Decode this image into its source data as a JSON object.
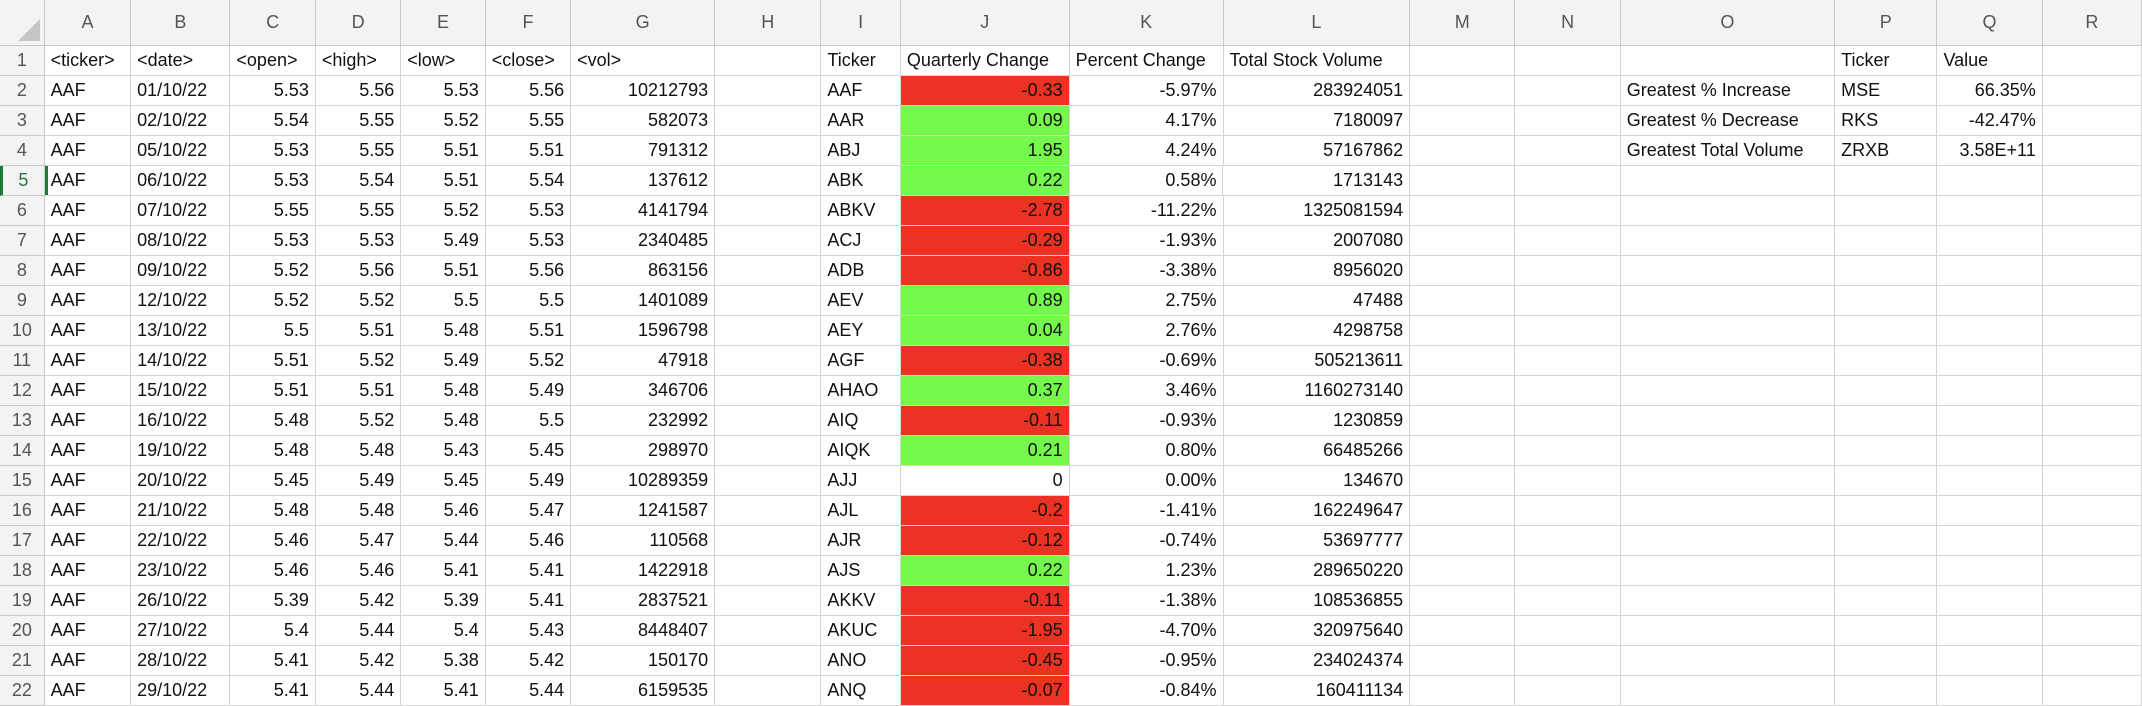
{
  "columns": [
    "A",
    "B",
    "C",
    "D",
    "E",
    "F",
    "G",
    "H",
    "I",
    "J",
    "K",
    "L",
    "M",
    "N",
    "O",
    "P",
    "Q",
    "R"
  ],
  "colors": {
    "positive": "#75f94c",
    "negative": "#eb3223",
    "header_bg": "#f3f3f3",
    "grid": "#d4d4d4"
  },
  "active_row": 5,
  "rows": [
    {
      "n": "1",
      "cells": [
        "<ticker>",
        "<date>",
        "<open>",
        "<high>",
        "<low>",
        "<close>",
        "<vol>",
        "",
        "Ticker",
        "Quarterly Change",
        "Percent Change",
        "Total Stock Volume",
        "",
        "",
        "",
        "Ticker",
        "Value",
        ""
      ]
    },
    {
      "n": "2",
      "cells": [
        "AAF",
        "01/10/22",
        "5.53",
        "5.56",
        "5.53",
        "5.56",
        "10212793",
        "",
        "AAF",
        "-0.33",
        "-5.97%",
        "283924051",
        "",
        "",
        "Greatest % Increase",
        "MSE",
        "66.35%",
        ""
      ]
    },
    {
      "n": "3",
      "cells": [
        "AAF",
        "02/10/22",
        "5.54",
        "5.55",
        "5.52",
        "5.55",
        "582073",
        "",
        "AAR",
        "0.09",
        "4.17%",
        "7180097",
        "",
        "",
        "Greatest % Decrease",
        "RKS",
        "-42.47%",
        ""
      ]
    },
    {
      "n": "4",
      "cells": [
        "AAF",
        "05/10/22",
        "5.53",
        "5.55",
        "5.51",
        "5.51",
        "791312",
        "",
        "ABJ",
        "1.95",
        "4.24%",
        "57167862",
        "",
        "",
        "Greatest Total Volume",
        "ZRXB",
        "3.58E+11",
        ""
      ]
    },
    {
      "n": "5",
      "cells": [
        "AAF",
        "06/10/22",
        "5.53",
        "5.54",
        "5.51",
        "5.54",
        "137612",
        "",
        "ABK",
        "0.22",
        "0.58%",
        "1713143",
        "",
        "",
        "",
        "",
        "",
        ""
      ]
    },
    {
      "n": "6",
      "cells": [
        "AAF",
        "07/10/22",
        "5.55",
        "5.55",
        "5.52",
        "5.53",
        "4141794",
        "",
        "ABKV",
        "-2.78",
        "-11.22%",
        "1325081594",
        "",
        "",
        "",
        "",
        "",
        ""
      ]
    },
    {
      "n": "7",
      "cells": [
        "AAF",
        "08/10/22",
        "5.53",
        "5.53",
        "5.49",
        "5.53",
        "2340485",
        "",
        "ACJ",
        "-0.29",
        "-1.93%",
        "2007080",
        "",
        "",
        "",
        "",
        "",
        ""
      ]
    },
    {
      "n": "8",
      "cells": [
        "AAF",
        "09/10/22",
        "5.52",
        "5.56",
        "5.51",
        "5.56",
        "863156",
        "",
        "ADB",
        "-0.86",
        "-3.38%",
        "8956020",
        "",
        "",
        "",
        "",
        "",
        ""
      ]
    },
    {
      "n": "9",
      "cells": [
        "AAF",
        "12/10/22",
        "5.52",
        "5.52",
        "5.5",
        "5.5",
        "1401089",
        "",
        "AEV",
        "0.89",
        "2.75%",
        "47488",
        "",
        "",
        "",
        "",
        "",
        ""
      ]
    },
    {
      "n": "10",
      "cells": [
        "AAF",
        "13/10/22",
        "5.5",
        "5.51",
        "5.48",
        "5.51",
        "1596798",
        "",
        "AEY",
        "0.04",
        "2.76%",
        "4298758",
        "",
        "",
        "",
        "",
        "",
        ""
      ]
    },
    {
      "n": "11",
      "cells": [
        "AAF",
        "14/10/22",
        "5.51",
        "5.52",
        "5.49",
        "5.52",
        "47918",
        "",
        "AGF",
        "-0.38",
        "-0.69%",
        "505213611",
        "",
        "",
        "",
        "",
        "",
        ""
      ]
    },
    {
      "n": "12",
      "cells": [
        "AAF",
        "15/10/22",
        "5.51",
        "5.51",
        "5.48",
        "5.49",
        "346706",
        "",
        "AHAO",
        "0.37",
        "3.46%",
        "1160273140",
        "",
        "",
        "",
        "",
        "",
        ""
      ]
    },
    {
      "n": "13",
      "cells": [
        "AAF",
        "16/10/22",
        "5.48",
        "5.52",
        "5.48",
        "5.5",
        "232992",
        "",
        "AIQ",
        "-0.11",
        "-0.93%",
        "1230859",
        "",
        "",
        "",
        "",
        "",
        ""
      ]
    },
    {
      "n": "14",
      "cells": [
        "AAF",
        "19/10/22",
        "5.48",
        "5.48",
        "5.43",
        "5.45",
        "298970",
        "",
        "AIQK",
        "0.21",
        "0.80%",
        "66485266",
        "",
        "",
        "",
        "",
        "",
        ""
      ]
    },
    {
      "n": "15",
      "cells": [
        "AAF",
        "20/10/22",
        "5.45",
        "5.49",
        "5.45",
        "5.49",
        "10289359",
        "",
        "AJJ",
        "0",
        "0.00%",
        "134670",
        "",
        "",
        "",
        "",
        "",
        ""
      ]
    },
    {
      "n": "16",
      "cells": [
        "AAF",
        "21/10/22",
        "5.48",
        "5.48",
        "5.46",
        "5.47",
        "1241587",
        "",
        "AJL",
        "-0.2",
        "-1.41%",
        "162249647",
        "",
        "",
        "",
        "",
        "",
        ""
      ]
    },
    {
      "n": "17",
      "cells": [
        "AAF",
        "22/10/22",
        "5.46",
        "5.47",
        "5.44",
        "5.46",
        "110568",
        "",
        "AJR",
        "-0.12",
        "-0.74%",
        "53697777",
        "",
        "",
        "",
        "",
        "",
        ""
      ]
    },
    {
      "n": "18",
      "cells": [
        "AAF",
        "23/10/22",
        "5.46",
        "5.46",
        "5.41",
        "5.41",
        "1422918",
        "",
        "AJS",
        "0.22",
        "1.23%",
        "289650220",
        "",
        "",
        "",
        "",
        "",
        ""
      ]
    },
    {
      "n": "19",
      "cells": [
        "AAF",
        "26/10/22",
        "5.39",
        "5.42",
        "5.39",
        "5.41",
        "2837521",
        "",
        "AKKV",
        "-0.11",
        "-1.38%",
        "108536855",
        "",
        "",
        "",
        "",
        "",
        ""
      ]
    },
    {
      "n": "20",
      "cells": [
        "AAF",
        "27/10/22",
        "5.4",
        "5.44",
        "5.4",
        "5.43",
        "8448407",
        "",
        "AKUC",
        "-1.95",
        "-4.70%",
        "320975640",
        "",
        "",
        "",
        "",
        "",
        ""
      ]
    },
    {
      "n": "21",
      "cells": [
        "AAF",
        "28/10/22",
        "5.41",
        "5.42",
        "5.38",
        "5.42",
        "150170",
        "",
        "ANO",
        "-0.45",
        "-0.95%",
        "234024374",
        "",
        "",
        "",
        "",
        "",
        ""
      ]
    },
    {
      "n": "22",
      "cells": [
        "AAF",
        "29/10/22",
        "5.41",
        "5.44",
        "5.41",
        "5.44",
        "6159535",
        "",
        "ANQ",
        "-0.07",
        "-0.84%",
        "160411134",
        "",
        "",
        "",
        "",
        "",
        ""
      ]
    }
  ]
}
